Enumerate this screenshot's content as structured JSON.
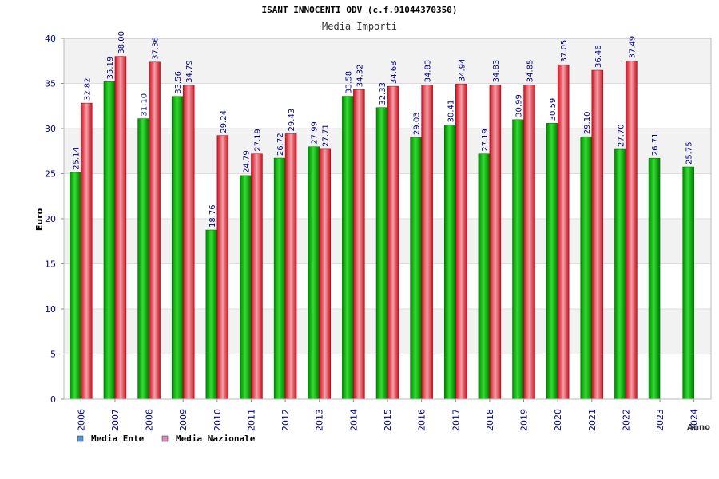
{
  "chart_data": {
    "type": "bar",
    "title": "ISANT INNOCENTI ODV (c.f.91044370350)",
    "subtitle": "Media Importi",
    "ylabel": "Euro",
    "xlabel": "Anno",
    "ylim": [
      0,
      40
    ],
    "yticks": [
      0,
      5,
      10,
      15,
      20,
      25,
      30,
      35,
      40
    ],
    "grid": true,
    "legend_position": "bottom-left",
    "categories": [
      "2006",
      "2007",
      "2008",
      "2009",
      "2010",
      "2011",
      "2012",
      "2013",
      "2014",
      "2015",
      "2016",
      "2017",
      "2018",
      "2019",
      "2020",
      "2021",
      "2022",
      "2023",
      "2024"
    ],
    "series": [
      {
        "name": "Media Ente",
        "legend_color": "#5599dd",
        "bar_color": "#00aa00",
        "values": [
          25.14,
          35.19,
          31.1,
          33.56,
          18.76,
          24.79,
          26.72,
          27.99,
          33.58,
          32.33,
          29.03,
          30.41,
          27.19,
          30.99,
          30.59,
          29.1,
          27.7,
          26.71,
          25.75
        ],
        "labels": [
          "25.14",
          "35.19",
          "31.10",
          "33.56",
          "18.76",
          "24.79",
          "26.72",
          "27.99",
          "33.58",
          "32.33",
          "29.03",
          "30.41",
          "27.19",
          "30.99",
          "30.59",
          "29.10",
          "27.70",
          "26.71",
          "25.75"
        ]
      },
      {
        "name": "Media Nazionale",
        "legend_color": "#dd88bb",
        "bar_color": "#e8202a",
        "values": [
          32.82,
          38.0,
          37.36,
          34.79,
          29.24,
          27.19,
          29.43,
          27.71,
          34.32,
          34.68,
          34.83,
          34.94,
          34.83,
          34.85,
          37.05,
          36.46,
          37.49,
          null,
          null
        ],
        "labels": [
          "32.82",
          "38.00",
          "37.36",
          "34.79",
          "29.24",
          "27.19",
          "29.43",
          "27.71",
          "34.32",
          "34.68",
          "34.83",
          "34.94",
          "34.83",
          "34.85",
          "37.05",
          "36.46",
          "37.49",
          null,
          null
        ]
      }
    ]
  }
}
